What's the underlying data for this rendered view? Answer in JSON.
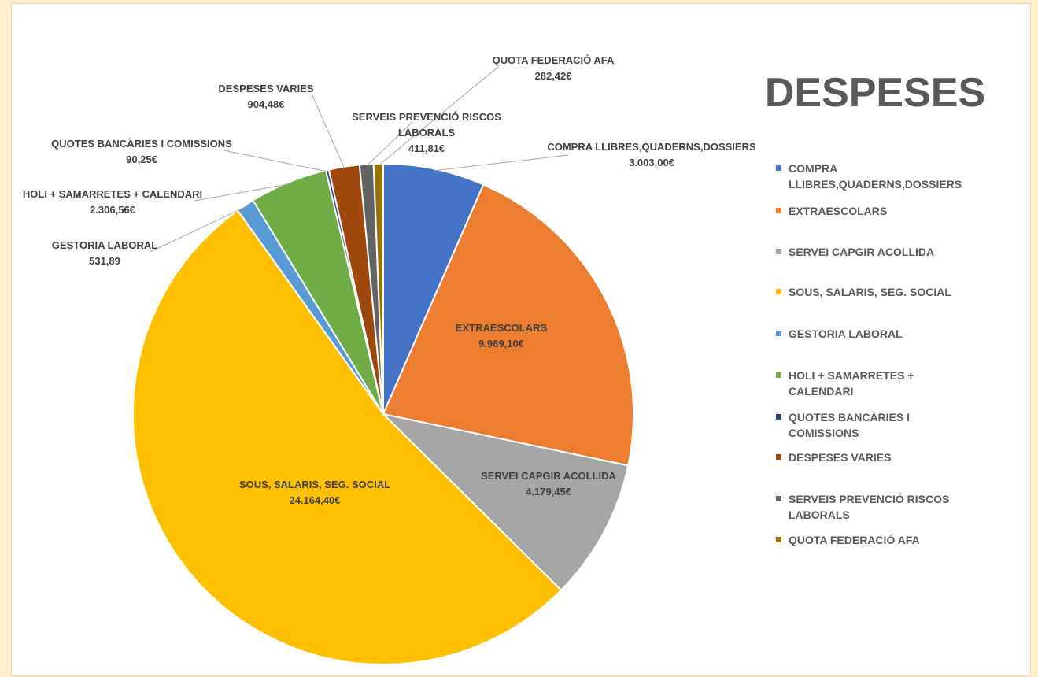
{
  "chart_data": {
    "type": "pie",
    "title": "DESPESES",
    "legend_position": "right",
    "series": [
      {
        "name": "COMPRA LLIBRES,QUADERNS,DOSSIERS",
        "value": 3003.0,
        "label": "3.003,00€",
        "color": "#4472C4"
      },
      {
        "name": "EXTRAESCOLARS",
        "value": 9969.1,
        "label": "9.969,10€",
        "color": "#ED7D31"
      },
      {
        "name": "SERVEI CAPGIR ACOLLIDA",
        "value": 4179.45,
        "label": "4.179,45€",
        "color": "#A5A5A5"
      },
      {
        "name": "SOUS, SALARIS, SEG. SOCIAL",
        "value": 24164.4,
        "label": "24.164,40€",
        "color": "#FFC000"
      },
      {
        "name": "GESTORIA LABORAL",
        "value": 531.89,
        "label": "531,89",
        "color": "#5B9BD5"
      },
      {
        "name": "HOLI + SAMARRETES + CALENDARI",
        "value": 2306.56,
        "label": "2.306,56€",
        "color": "#70AD47"
      },
      {
        "name": "QUOTES BANCÀRIES I COMISSIONS",
        "value": 90.25,
        "label": "90,25€",
        "color": "#264478"
      },
      {
        "name": "DESPESES VARIES",
        "value": 904.48,
        "label": "904,48€",
        "color": "#9E480E"
      },
      {
        "name": "SERVEIS PREVENCIÓ RISCOS LABORALS",
        "value": 411.81,
        "label": "411,81€",
        "color": "#636363"
      },
      {
        "name": "QUOTA FEDERACIÓ AFA",
        "value": 282.42,
        "label": "282,42€",
        "color": "#997300"
      }
    ]
  }
}
